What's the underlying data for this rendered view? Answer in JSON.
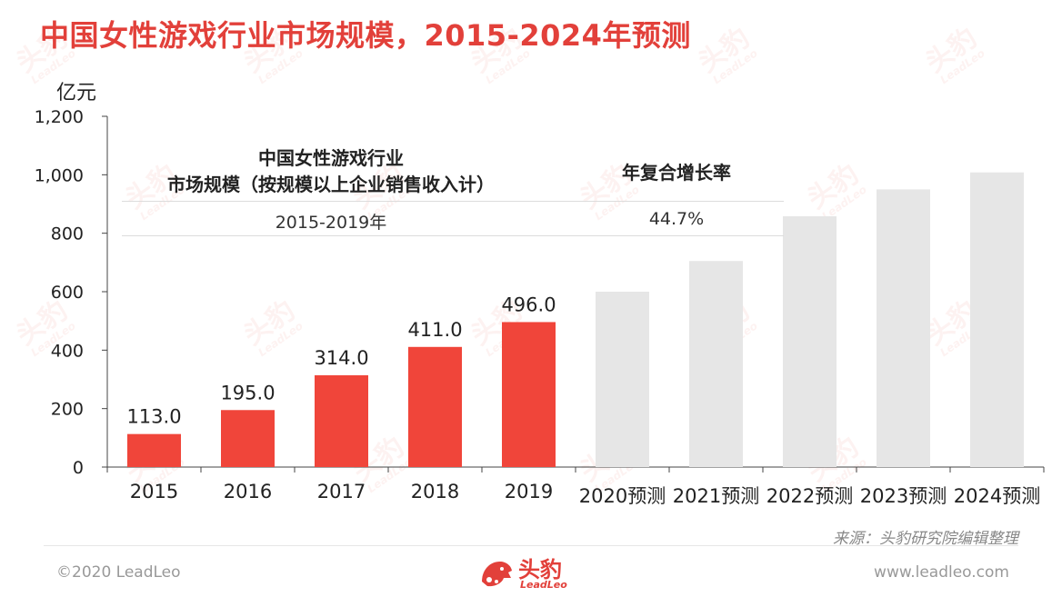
{
  "title": "中国女性游戏行业市场规模，2015-2024年预测",
  "unit_label": "亿元",
  "cagr_table": {
    "header_line1": "中国女性游戏行业",
    "header_line2": "市场规模（按规模以上企业销售收入计）",
    "rate_header": "年复合增长率",
    "period": "2015-2019年",
    "rate": "44.7%"
  },
  "chart_data": {
    "type": "bar",
    "categories": [
      "2015",
      "2016",
      "2017",
      "2018",
      "2019",
      "2020预测",
      "2021预测",
      "2022预测",
      "2023预测",
      "2024预测"
    ],
    "values": [
      113.0,
      195.0,
      314.0,
      411.0,
      496.0,
      600,
      705,
      858,
      950,
      1008
    ],
    "data_labels": [
      "113.0",
      "195.0",
      "314.0",
      "411.0",
      "496.0",
      "",
      "",
      "",
      "",
      ""
    ],
    "bar_colors": [
      "#f0453a",
      "#f0453a",
      "#f0453a",
      "#f0453a",
      "#f0453a",
      "#e6e6e6",
      "#e6e6e6",
      "#e6e6e6",
      "#e6e6e6",
      "#e6e6e6"
    ],
    "ylim": [
      0,
      1200
    ],
    "yticks": [
      0,
      200,
      400,
      600,
      800,
      1000,
      1200
    ],
    "ytick_labels": [
      "0",
      "200",
      "400",
      "600",
      "800",
      "1,000",
      "1,200"
    ],
    "ylabel": "亿元",
    "xlabel": "",
    "grid": false
  },
  "colors": {
    "accent": "#e2403a",
    "actual_bar": "#f0453a",
    "forecast_bar": "#e6e6e6"
  },
  "source_note": "来源：头豹研究院编辑整理",
  "footer": {
    "copyright": "©2020 LeadLeo",
    "website": "www.leadleo.com",
    "logo_cn": "头豹",
    "logo_en": "LeadLeo"
  },
  "watermark": {
    "cn": "头豹",
    "en": "LeadLeo"
  }
}
